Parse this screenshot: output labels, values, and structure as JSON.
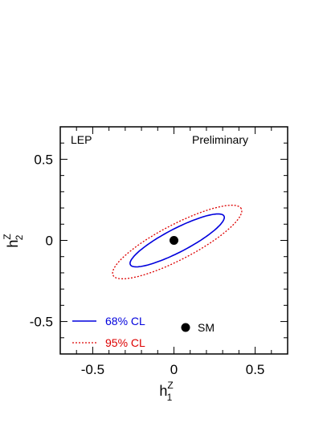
{
  "chart_data": {
    "type": "contour",
    "corner_labels": {
      "left": "LEP",
      "right": "Preliminary"
    },
    "xlabel": {
      "base": "h",
      "sup": "Z",
      "sub": "1"
    },
    "ylabel": {
      "base": "h",
      "sup": "Z",
      "sub": "2"
    },
    "xlim": [
      -0.7,
      0.7
    ],
    "ylim": [
      -0.7,
      0.7
    ],
    "x_ticks": [
      {
        "value": -0.5,
        "label": "-0.5"
      },
      {
        "value": 0,
        "label": "0"
      },
      {
        "value": 0.5,
        "label": "0.5"
      }
    ],
    "y_ticks": [
      {
        "value": 0.5,
        "label": "0.5"
      },
      {
        "value": 0,
        "label": "0"
      },
      {
        "value": -0.5,
        "label": "-0.5"
      }
    ],
    "minor_tick_step": 0.1,
    "grid": false,
    "series": [
      {
        "name": "68% CL",
        "color": "#0000dd",
        "style": "solid",
        "center": [
          0.02,
          0.0
        ],
        "semi_major": 0.325,
        "semi_minor": 0.072,
        "angle_deg": 27.5
      },
      {
        "name": "95% CL",
        "color": "#dd0000",
        "style": "dotted",
        "center": [
          0.02,
          -0.01
        ],
        "semi_major": 0.445,
        "semi_minor": 0.108,
        "angle_deg": 27.5
      }
    ],
    "points": [
      {
        "name": "SM",
        "x": 0,
        "y": 0
      }
    ],
    "legend": {
      "placement": "bottom-left",
      "entries": [
        "68% CL",
        "95% CL"
      ],
      "marker_label": "SM"
    }
  }
}
